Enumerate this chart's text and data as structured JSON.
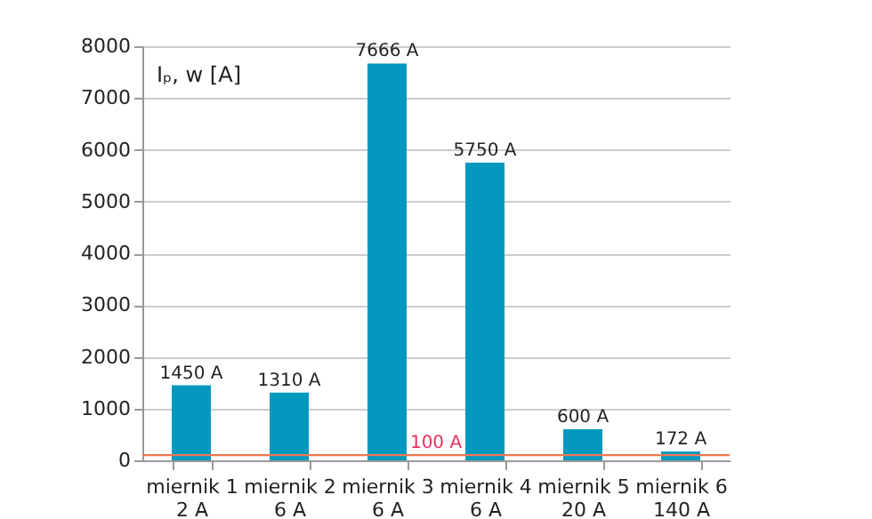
{
  "chart_data": {
    "type": "bar",
    "ylabel": "Iₚ, w [A]",
    "categories": [
      "miernik 1\n2 A",
      "miernik 2\n6 A",
      "miernik 3\n6 A",
      "miernik 4\n6 A",
      "miernik 5\n20 A",
      "miernik 6\n140 A"
    ],
    "values": [
      1450,
      1310,
      7666,
      5750,
      600,
      172
    ],
    "value_labels": [
      "1450 A",
      "1310 A",
      "7666 A",
      "5750 A",
      "600 A",
      "172 A"
    ],
    "color": "#0399bf",
    "ylim": [
      0,
      8000
    ],
    "yticks": [
      0,
      1000,
      2000,
      3000,
      4000,
      5000,
      6000,
      7000,
      8000
    ],
    "grid": "y",
    "ref_lines": [
      {
        "axis": "y",
        "value": 100,
        "label": "100 A",
        "color": "#f07850"
      }
    ]
  }
}
